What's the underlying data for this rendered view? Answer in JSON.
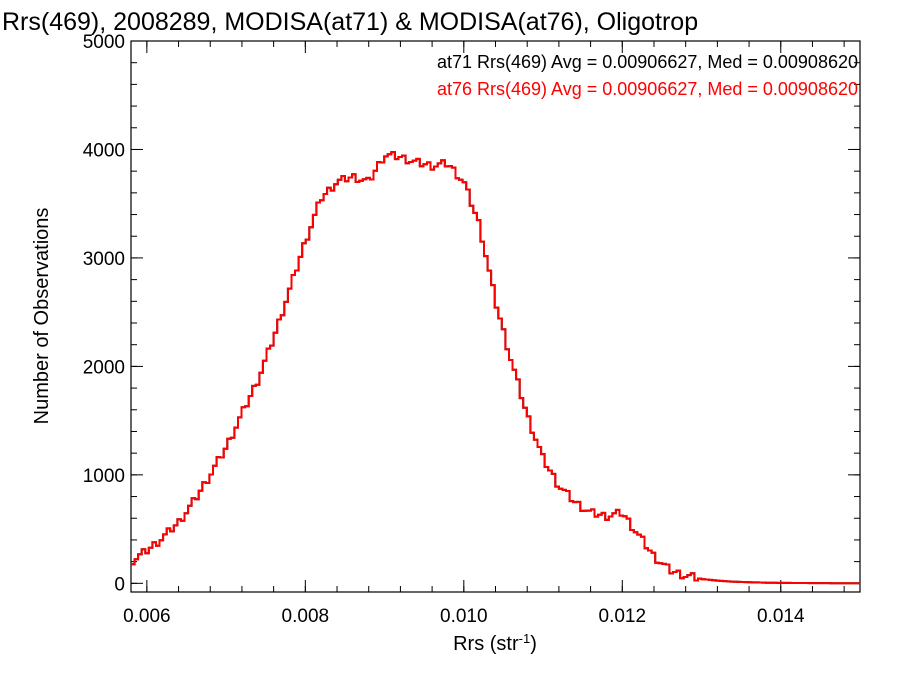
{
  "chart_data": {
    "type": "line",
    "title": "Rrs(469), 2008289, MODISA(at71) & MODISA(at76), Oligotrop",
    "xlabel": "Rrs (str",
    "xlabel_exp": "-1",
    "xlabel_close": ")",
    "ylabel": "Number of Observations",
    "xlim": [
      0.0058,
      0.015
    ],
    "ylim": [
      -80,
      5000
    ],
    "xticks": [
      "0.006",
      "0.008",
      "0.010",
      "0.012",
      "0.014"
    ],
    "xtick_values": [
      0.006,
      0.008,
      0.01,
      0.012,
      0.014
    ],
    "yticks": [
      "0",
      "1000",
      "2000",
      "3000",
      "4000",
      "5000"
    ],
    "ytick_values": [
      0,
      1000,
      2000,
      3000,
      4000,
      5000
    ],
    "grid": false,
    "legend": {
      "placement": "top-right",
      "entries": [
        {
          "text": "at71 Rrs(469) Avg = 0.00906627, Med = 0.00908620",
          "color": "#000000"
        },
        {
          "text": "at76 Rrs(469) Avg = 0.00906627, Med = 0.00908620",
          "color": "#ff0000"
        }
      ]
    },
    "series": [
      {
        "name": "at71",
        "color": "#000000",
        "x": [
          0.0058,
          0.006,
          0.0062,
          0.0064,
          0.0066,
          0.0068,
          0.007,
          0.0072,
          0.0074,
          0.0076,
          0.0078,
          0.008,
          0.0082,
          0.0084,
          0.0086,
          0.0088,
          0.009,
          0.0092,
          0.0094,
          0.0096,
          0.0098,
          0.01,
          0.0102,
          0.0104,
          0.0106,
          0.0108,
          0.011,
          0.0112,
          0.0114,
          0.0116,
          0.0118,
          0.012,
          0.0122,
          0.0124,
          0.0126,
          0.0128,
          0.013,
          0.0132,
          0.0134,
          0.0136,
          0.0138,
          0.014,
          0.0145,
          0.015
        ],
        "y": [
          200,
          300,
          420,
          560,
          760,
          1000,
          1250,
          1560,
          1870,
          2260,
          2700,
          3150,
          3550,
          3700,
          3750,
          3700,
          3950,
          3930,
          3880,
          3850,
          3870,
          3700,
          3300,
          2600,
          2050,
          1550,
          1150,
          900,
          750,
          650,
          620,
          650,
          450,
          250,
          120,
          70,
          40,
          25,
          15,
          10,
          6,
          4,
          2,
          0
        ]
      },
      {
        "name": "at76",
        "color": "#ff0000",
        "x": [
          0.0058,
          0.006,
          0.0062,
          0.0064,
          0.0066,
          0.0068,
          0.007,
          0.0072,
          0.0074,
          0.0076,
          0.0078,
          0.008,
          0.0082,
          0.0084,
          0.0086,
          0.0088,
          0.009,
          0.0092,
          0.0094,
          0.0096,
          0.0098,
          0.01,
          0.0102,
          0.0104,
          0.0106,
          0.0108,
          0.011,
          0.0112,
          0.0114,
          0.0116,
          0.0118,
          0.012,
          0.0122,
          0.0124,
          0.0126,
          0.0128,
          0.013,
          0.0132,
          0.0134,
          0.0136,
          0.0138,
          0.014,
          0.0145,
          0.015
        ],
        "y": [
          200,
          300,
          420,
          560,
          760,
          1000,
          1250,
          1560,
          1870,
          2260,
          2700,
          3150,
          3550,
          3700,
          3750,
          3700,
          3950,
          3930,
          3880,
          3850,
          3870,
          3700,
          3300,
          2600,
          2050,
          1550,
          1150,
          900,
          750,
          650,
          620,
          650,
          450,
          250,
          120,
          70,
          40,
          25,
          15,
          10,
          6,
          4,
          2,
          0
        ]
      }
    ]
  }
}
